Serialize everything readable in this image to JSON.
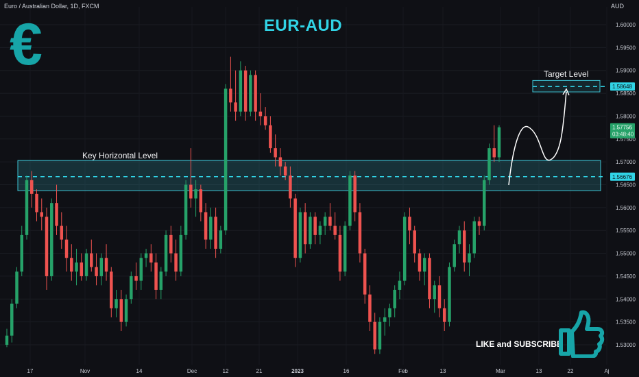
{
  "header": {
    "symbol_line": "Euro / Australian Dollar, 1D, FXCM",
    "currency": "AUD",
    "title": "EUR-AUD",
    "logo_glyph": "€"
  },
  "annotations": {
    "key_level_label": "Key Horizontal Level",
    "target_label": "Target Level",
    "cta": "LIKE and SUBSCRIBE",
    "target_price_tag": "1.58648",
    "key_price_tag": "1.56676",
    "last_price_tag": "1.57756",
    "countdown": "03:48:40"
  },
  "colors": {
    "up": "#26a269",
    "down": "#ef5350",
    "zone": "#3ec6d6",
    "accent": "#31d4e6",
    "logo": "#17a5a8"
  },
  "chart_data": {
    "type": "candlestick",
    "y_axis": {
      "ticks": [
        "1.60000",
        "1.59500",
        "1.59000",
        "1.58500",
        "1.58000",
        "1.57500",
        "1.57000",
        "1.56500",
        "1.56000",
        "1.55500",
        "1.55000",
        "1.54500",
        "1.54000",
        "1.53500",
        "1.53000"
      ],
      "range": [
        1.5265,
        1.6025
      ]
    },
    "x_axis": {
      "ticks": [
        "17",
        "Nov",
        "14",
        "Dec",
        "12",
        "21",
        "2023",
        "16",
        "Feb",
        "13",
        "Mar",
        "13",
        "22",
        "Aj"
      ]
    },
    "key_zone": [
      1.5637,
      1.5703
    ],
    "key_level": 1.56676,
    "target_zone": [
      1.5853,
      1.5878
    ],
    "target_level": 1.58648,
    "candles": [
      [
        1.53,
        1.5335,
        1.5295,
        1.532
      ],
      [
        1.532,
        1.54,
        1.5305,
        1.539
      ],
      [
        1.539,
        1.547,
        1.538,
        1.546
      ],
      [
        1.546,
        1.556,
        1.545,
        1.554
      ],
      [
        1.554,
        1.567,
        1.553,
        1.566
      ],
      [
        1.566,
        1.568,
        1.56,
        1.563
      ],
      [
        1.563,
        1.564,
        1.557,
        1.559
      ],
      [
        1.559,
        1.562,
        1.555,
        1.558
      ],
      [
        1.558,
        1.56,
        1.542,
        1.545
      ],
      [
        1.545,
        1.562,
        1.544,
        1.561
      ],
      [
        1.561,
        1.565,
        1.554,
        1.556
      ],
      [
        1.556,
        1.559,
        1.551,
        1.553
      ],
      [
        1.553,
        1.556,
        1.546,
        1.549
      ],
      [
        1.549,
        1.552,
        1.544,
        1.546
      ],
      [
        1.546,
        1.551,
        1.543,
        1.548
      ],
      [
        1.548,
        1.55,
        1.544,
        1.545
      ],
      [
        1.545,
        1.551,
        1.544,
        1.55
      ],
      [
        1.55,
        1.553,
        1.546,
        1.547
      ],
      [
        1.547,
        1.55,
        1.543,
        1.545
      ],
      [
        1.545,
        1.55,
        1.543,
        1.549
      ],
      [
        1.549,
        1.552,
        1.544,
        1.546
      ],
      [
        1.546,
        1.547,
        1.536,
        1.538
      ],
      [
        1.538,
        1.542,
        1.536,
        1.54
      ],
      [
        1.54,
        1.542,
        1.533,
        1.535
      ],
      [
        1.535,
        1.541,
        1.534,
        1.54
      ],
      [
        1.54,
        1.546,
        1.539,
        1.545
      ],
      [
        1.545,
        1.548,
        1.542,
        1.544
      ],
      [
        1.544,
        1.55,
        1.542,
        1.549
      ],
      [
        1.549,
        1.551,
        1.547,
        1.55
      ],
      [
        1.55,
        1.552,
        1.546,
        1.548
      ],
      [
        1.548,
        1.55,
        1.54,
        1.542
      ],
      [
        1.542,
        1.547,
        1.54,
        1.546
      ],
      [
        1.546,
        1.555,
        1.545,
        1.554
      ],
      [
        1.554,
        1.556,
        1.548,
        1.55
      ],
      [
        1.55,
        1.553,
        1.544,
        1.546
      ],
      [
        1.546,
        1.556,
        1.545,
        1.554
      ],
      [
        1.554,
        1.566,
        1.553,
        1.565
      ],
      [
        1.565,
        1.573,
        1.56,
        1.562
      ],
      [
        1.562,
        1.566,
        1.558,
        1.564
      ],
      [
        1.564,
        1.565,
        1.557,
        1.559
      ],
      [
        1.559,
        1.561,
        1.551,
        1.553
      ],
      [
        1.553,
        1.56,
        1.551,
        1.558
      ],
      [
        1.558,
        1.56,
        1.549,
        1.551
      ],
      [
        1.551,
        1.556,
        1.55,
        1.555
      ],
      [
        1.555,
        1.587,
        1.554,
        1.586
      ],
      [
        1.586,
        1.593,
        1.581,
        1.583
      ],
      [
        1.583,
        1.59,
        1.579,
        1.581
      ],
      [
        1.581,
        1.592,
        1.58,
        1.59
      ],
      [
        1.59,
        1.591,
        1.579,
        1.581
      ],
      [
        1.581,
        1.59,
        1.58,
        1.589
      ],
      [
        1.589,
        1.59,
        1.579,
        1.581
      ],
      [
        1.581,
        1.585,
        1.578,
        1.58
      ],
      [
        1.58,
        1.582,
        1.577,
        1.578
      ],
      [
        1.578,
        1.58,
        1.572,
        1.573
      ],
      [
        1.573,
        1.576,
        1.569,
        1.571
      ],
      [
        1.571,
        1.573,
        1.567,
        1.569
      ],
      [
        1.569,
        1.57,
        1.566,
        1.567
      ],
      [
        1.567,
        1.569,
        1.56,
        1.562
      ],
      [
        1.562,
        1.563,
        1.547,
        1.549
      ],
      [
        1.549,
        1.56,
        1.548,
        1.559
      ],
      [
        1.559,
        1.561,
        1.55,
        1.552
      ],
      [
        1.552,
        1.559,
        1.551,
        1.558
      ],
      [
        1.558,
        1.559,
        1.552,
        1.554
      ],
      [
        1.554,
        1.557,
        1.552,
        1.556
      ],
      [
        1.556,
        1.559,
        1.554,
        1.558
      ],
      [
        1.558,
        1.561,
        1.555,
        1.556
      ],
      [
        1.556,
        1.559,
        1.553,
        1.554
      ],
      [
        1.554,
        1.556,
        1.544,
        1.546
      ],
      [
        1.546,
        1.557,
        1.545,
        1.556
      ],
      [
        1.556,
        1.568,
        1.555,
        1.567
      ],
      [
        1.567,
        1.568,
        1.557,
        1.559
      ],
      [
        1.559,
        1.561,
        1.548,
        1.55
      ],
      [
        1.55,
        1.551,
        1.539,
        1.541
      ],
      [
        1.541,
        1.543,
        1.533,
        1.535
      ],
      [
        1.535,
        1.537,
        1.528,
        1.529
      ],
      [
        1.529,
        1.536,
        1.528,
        1.535
      ],
      [
        1.535,
        1.538,
        1.532,
        1.536
      ],
      [
        1.536,
        1.539,
        1.534,
        1.538
      ],
      [
        1.538,
        1.543,
        1.536,
        1.542
      ],
      [
        1.542,
        1.546,
        1.54,
        1.544
      ],
      [
        1.544,
        1.559,
        1.543,
        1.558
      ],
      [
        1.558,
        1.56,
        1.552,
        1.555
      ],
      [
        1.555,
        1.556,
        1.548,
        1.55
      ],
      [
        1.55,
        1.551,
        1.544,
        1.546
      ],
      [
        1.546,
        1.55,
        1.543,
        1.549
      ],
      [
        1.549,
        1.55,
        1.538,
        1.54
      ],
      [
        1.54,
        1.544,
        1.537,
        1.543
      ],
      [
        1.543,
        1.545,
        1.536,
        1.538
      ],
      [
        1.538,
        1.54,
        1.533,
        1.535
      ],
      [
        1.535,
        1.548,
        1.534,
        1.547
      ],
      [
        1.547,
        1.553,
        1.546,
        1.552
      ],
      [
        1.552,
        1.556,
        1.55,
        1.555
      ],
      [
        1.555,
        1.557,
        1.546,
        1.548
      ],
      [
        1.548,
        1.552,
        1.545,
        1.55
      ],
      [
        1.55,
        1.558,
        1.549,
        1.557
      ],
      [
        1.557,
        1.558,
        1.554,
        1.556
      ],
      [
        1.556,
        1.567,
        1.555,
        1.566
      ],
      [
        1.566,
        1.574,
        1.565,
        1.573
      ],
      [
        1.573,
        1.578,
        1.57,
        1.571
      ],
      [
        1.571,
        1.578,
        1.57,
        1.57756
      ]
    ]
  }
}
